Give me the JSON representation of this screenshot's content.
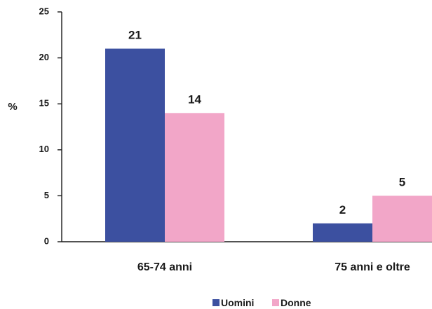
{
  "chart_data": {
    "type": "bar",
    "ylabel": "%",
    "ylim": [
      0,
      25
    ],
    "yticks": [
      0,
      5,
      10,
      15,
      20,
      25
    ],
    "categories": [
      "65-74 anni",
      "75 anni e oltre"
    ],
    "series": [
      {
        "name": "Uomini",
        "values": [
          21,
          2
        ],
        "color": "#3c50a0"
      },
      {
        "name": "Donne",
        "values": [
          14,
          5
        ],
        "color": "#f2a6c8"
      }
    ],
    "data_labels": true,
    "legend_position": "bottom",
    "grid": false
  }
}
